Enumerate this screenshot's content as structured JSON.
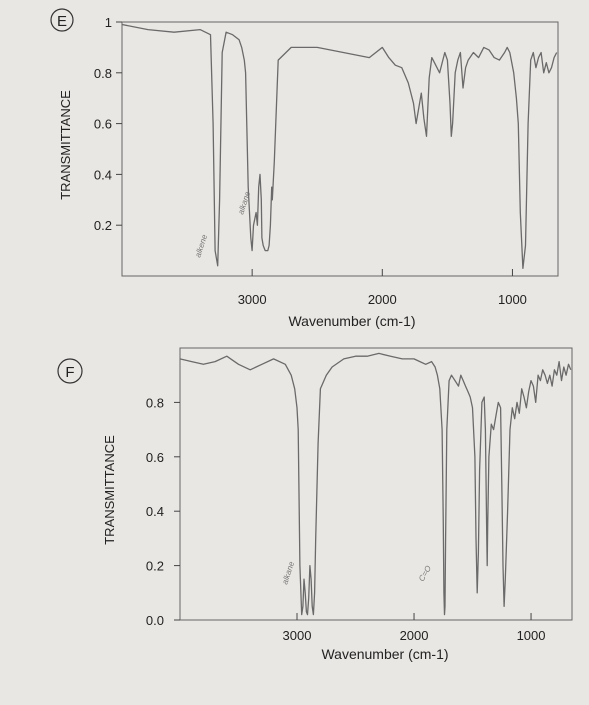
{
  "chart_data": [
    {
      "type": "line",
      "panel_letter": "E",
      "title": "",
      "xlabel": "Wavenumber (cm-1)",
      "ylabel": "TRANSMITTANCE",
      "xlim": [
        4000,
        650
      ],
      "ylim": [
        0,
        1
      ],
      "x_ticks": [
        3000,
        2000,
        1000
      ],
      "y_ticks": [
        "1",
        "0.8",
        "0.6",
        "0.4",
        "0.2"
      ],
      "annotations": [
        "alkene",
        "alkane"
      ],
      "series": [
        {
          "color": "#6a6a6a",
          "x": [
            4000,
            3800,
            3600,
            3400,
            3320,
            3300,
            3285,
            3265,
            3250,
            3230,
            3200,
            3150,
            3100,
            3080,
            3060,
            3050,
            3030,
            3010,
            3000,
            2990,
            2970,
            2960,
            2950,
            2940,
            2930,
            2925,
            2915,
            2900,
            2880,
            2870,
            2860,
            2850,
            2845,
            2830,
            2800,
            2700,
            2500,
            2300,
            2100,
            2000,
            1950,
            1900,
            1850,
            1800,
            1780,
            1760,
            1740,
            1720,
            1700,
            1680,
            1660,
            1640,
            1620,
            1600,
            1560,
            1520,
            1500,
            1480,
            1470,
            1460,
            1440,
            1420,
            1400,
            1380,
            1360,
            1340,
            1300,
            1260,
            1220,
            1180,
            1140,
            1100,
            1060,
            1040,
            1020,
            990,
            970,
            955,
            940,
            920,
            900,
            880,
            860,
            840,
            820,
            800,
            780,
            760,
            740,
            720,
            700,
            680,
            660
          ],
          "y": [
            0.99,
            0.97,
            0.96,
            0.97,
            0.95,
            0.6,
            0.1,
            0.04,
            0.3,
            0.88,
            0.96,
            0.95,
            0.93,
            0.9,
            0.85,
            0.8,
            0.35,
            0.15,
            0.1,
            0.2,
            0.25,
            0.2,
            0.35,
            0.4,
            0.3,
            0.15,
            0.12,
            0.1,
            0.1,
            0.12,
            0.2,
            0.35,
            0.3,
            0.45,
            0.85,
            0.9,
            0.9,
            0.88,
            0.86,
            0.9,
            0.86,
            0.83,
            0.82,
            0.76,
            0.72,
            0.68,
            0.6,
            0.66,
            0.72,
            0.62,
            0.55,
            0.78,
            0.86,
            0.84,
            0.8,
            0.88,
            0.85,
            0.68,
            0.55,
            0.6,
            0.8,
            0.85,
            0.88,
            0.74,
            0.82,
            0.85,
            0.88,
            0.86,
            0.9,
            0.89,
            0.86,
            0.85,
            0.88,
            0.9,
            0.88,
            0.8,
            0.7,
            0.6,
            0.25,
            0.03,
            0.12,
            0.6,
            0.85,
            0.88,
            0.82,
            0.86,
            0.88,
            0.8,
            0.84,
            0.8,
            0.82,
            0.86,
            0.88
          ]
        }
      ]
    },
    {
      "type": "line",
      "panel_letter": "F",
      "title": "",
      "xlabel": "Wavenumber (cm-1)",
      "ylabel": "TRANSMITTANCE",
      "xlim": [
        4000,
        650
      ],
      "ylim": [
        0,
        1
      ],
      "x_ticks": [
        3000,
        2000,
        1000
      ],
      "y_ticks": [
        "0.8",
        "0.6",
        "0.4",
        "0.2",
        "0.0"
      ],
      "annotations": [
        "alkane",
        "C=O"
      ],
      "series": [
        {
          "color": "#6a6a6a",
          "x": [
            4000,
            3900,
            3800,
            3700,
            3600,
            3500,
            3400,
            3300,
            3200,
            3100,
            3050,
            3020,
            3000,
            2990,
            2975,
            2960,
            2950,
            2940,
            2930,
            2920,
            2910,
            2900,
            2890,
            2880,
            2870,
            2860,
            2850,
            2840,
            2820,
            2800,
            2750,
            2700,
            2600,
            2500,
            2400,
            2300,
            2200,
            2100,
            2000,
            1950,
            1900,
            1850,
            1820,
            1800,
            1780,
            1760,
            1750,
            1745,
            1740,
            1735,
            1730,
            1720,
            1700,
            1680,
            1650,
            1620,
            1600,
            1580,
            1560,
            1540,
            1520,
            1500,
            1480,
            1470,
            1460,
            1450,
            1440,
            1420,
            1400,
            1390,
            1380,
            1375,
            1370,
            1360,
            1340,
            1320,
            1300,
            1280,
            1260,
            1250,
            1240,
            1230,
            1220,
            1200,
            1180,
            1160,
            1140,
            1120,
            1100,
            1080,
            1060,
            1040,
            1020,
            1000,
            980,
            960,
            940,
            920,
            900,
            880,
            860,
            840,
            820,
            800,
            780,
            760,
            740,
            720,
            700,
            680,
            660
          ],
          "y": [
            0.96,
            0.95,
            0.94,
            0.95,
            0.97,
            0.94,
            0.92,
            0.94,
            0.96,
            0.94,
            0.9,
            0.85,
            0.78,
            0.7,
            0.2,
            0.02,
            0.05,
            0.15,
            0.1,
            0.03,
            0.02,
            0.08,
            0.2,
            0.15,
            0.05,
            0.02,
            0.1,
            0.3,
            0.65,
            0.85,
            0.9,
            0.93,
            0.96,
            0.97,
            0.97,
            0.98,
            0.97,
            0.96,
            0.96,
            0.95,
            0.94,
            0.95,
            0.93,
            0.9,
            0.85,
            0.7,
            0.35,
            0.1,
            0.02,
            0.05,
            0.3,
            0.7,
            0.88,
            0.9,
            0.88,
            0.86,
            0.9,
            0.88,
            0.86,
            0.84,
            0.82,
            0.78,
            0.6,
            0.3,
            0.1,
            0.25,
            0.55,
            0.8,
            0.82,
            0.7,
            0.35,
            0.2,
            0.35,
            0.6,
            0.72,
            0.7,
            0.75,
            0.8,
            0.78,
            0.5,
            0.2,
            0.05,
            0.15,
            0.4,
            0.7,
            0.78,
            0.74,
            0.8,
            0.76,
            0.85,
            0.82,
            0.78,
            0.84,
            0.88,
            0.86,
            0.8,
            0.9,
            0.88,
            0.92,
            0.9,
            0.87,
            0.9,
            0.86,
            0.92,
            0.9,
            0.95,
            0.88,
            0.93,
            0.9,
            0.94,
            0.92
          ]
        }
      ]
    }
  ]
}
